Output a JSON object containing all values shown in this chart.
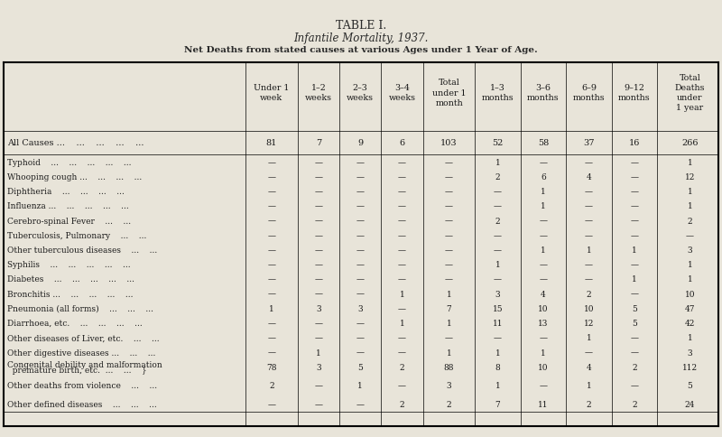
{
  "title1": "TABLE I.",
  "title2": "Infantile Mortality, 1937.",
  "title3": "Net Deaths from stated causes at various Ages under 1 Year of Age.",
  "bg_color": "#e8e4d9",
  "col_headers": [
    "Under 1\nweek",
    "1–2\nweeks",
    "2–3\nweeks",
    "3–4\nweeks",
    "Total\nunder 1\nmonth",
    "1–3\nmonths",
    "3–6\nmonths",
    "6–9\nmonths",
    "9–12\nmonths",
    "Total\nDeaths\nunder\n1 year"
  ],
  "rows": [
    {
      "label": "All Causes ...    ...    ...    ...    ...",
      "values": [
        "81",
        "7",
        "9",
        "6",
        "103",
        "52",
        "58",
        "37",
        "16",
        "266"
      ],
      "bold": true,
      "separator_before": true,
      "separator_after": true
    },
    {
      "label": "Typhoid    ...    ...    ...    ...    ...",
      "values": [
        "—",
        "—",
        "—",
        "—",
        "—",
        "1",
        "—",
        "—",
        "—",
        "1"
      ],
      "bold": false,
      "separator_before": false,
      "separator_after": false
    },
    {
      "label": "Whooping cough ...    ...    ...    ...",
      "values": [
        "—",
        "—",
        "—",
        "—",
        "—",
        "2",
        "6",
        "4",
        "—",
        "12"
      ],
      "bold": false,
      "separator_before": false,
      "separator_after": false
    },
    {
      "label": "Diphtheria    ...    ...    ...    ...",
      "values": [
        "—",
        "—",
        "—",
        "—",
        "—",
        "—",
        "1",
        "—",
        "—",
        "1"
      ],
      "bold": false,
      "separator_before": false,
      "separator_after": false
    },
    {
      "label": "Influenza ...    ...    ...    ...    ...",
      "values": [
        "—",
        "—",
        "—",
        "—",
        "—",
        "—",
        "1",
        "—",
        "—",
        "1"
      ],
      "bold": false,
      "separator_before": false,
      "separator_after": false
    },
    {
      "label": "Cerebro-spinal Fever    ...    ...",
      "values": [
        "—",
        "—",
        "—",
        "—",
        "—",
        "2",
        "—",
        "—",
        "—",
        "2"
      ],
      "bold": false,
      "separator_before": false,
      "separator_after": false
    },
    {
      "label": "Tuberculosis, Pulmonary    ...    ...",
      "values": [
        "—",
        "—",
        "—",
        "—",
        "—",
        "—",
        "—",
        "—",
        "—",
        "—"
      ],
      "bold": false,
      "separator_before": false,
      "separator_after": false
    },
    {
      "label": "Other tuberculous diseases    ...    ...",
      "values": [
        "—",
        "—",
        "—",
        "—",
        "—",
        "—",
        "1",
        "1",
        "1",
        "3"
      ],
      "bold": false,
      "separator_before": false,
      "separator_after": false
    },
    {
      "label": "Syphilis    ...    ...    ...    ...    ...",
      "values": [
        "—",
        "—",
        "—",
        "—",
        "—",
        "1",
        "—",
        "—",
        "—",
        "1"
      ],
      "bold": false,
      "separator_before": false,
      "separator_after": false
    },
    {
      "label": "Diabetes    ...    ...    ...    ...    ...",
      "values": [
        "—",
        "—",
        "—",
        "—",
        "—",
        "—",
        "—",
        "—",
        "1",
        "1"
      ],
      "bold": false,
      "separator_before": false,
      "separator_after": false
    },
    {
      "label": "Bronchitis ...    ...    ...    ...    ...",
      "values": [
        "—",
        "—",
        "—",
        "1",
        "1",
        "3",
        "4",
        "2",
        "—",
        "10"
      ],
      "bold": false,
      "separator_before": false,
      "separator_after": false
    },
    {
      "label": "Pneumonia (all forms)    ...    ...    ...",
      "values": [
        "1",
        "3",
        "3",
        "—",
        "7",
        "15",
        "10",
        "10",
        "5",
        "47"
      ],
      "bold": false,
      "separator_before": false,
      "separator_after": false
    },
    {
      "label": "Diarrhoea, etc.    ...    ...    ...    ...",
      "values": [
        "—",
        "—",
        "—",
        "1",
        "1",
        "11",
        "13",
        "12",
        "5",
        "42"
      ],
      "bold": false,
      "separator_before": false,
      "separator_after": false
    },
    {
      "label": "Other diseases of Liver, etc.    ...    ...",
      "values": [
        "—",
        "—",
        "—",
        "—",
        "—",
        "—",
        "—",
        "1",
        "—",
        "1"
      ],
      "bold": false,
      "separator_before": false,
      "separator_after": false
    },
    {
      "label": "Other digestive diseases ...    ...    ...",
      "values": [
        "—",
        "1",
        "—",
        "—",
        "1",
        "1",
        "1",
        "—",
        "—",
        "3"
      ],
      "bold": false,
      "separator_before": false,
      "separator_after": false
    },
    {
      "label": "Congenital debility and malformation\n  premature birth, etc.  ...    ...    }",
      "values": [
        "78",
        "3",
        "5",
        "2",
        "88",
        "8",
        "10",
        "4",
        "2",
        "112"
      ],
      "bold": false,
      "separator_before": false,
      "separator_after": false,
      "multiline": true
    },
    {
      "label": "Other deaths from violence    ...    ...",
      "values": [
        "2",
        "—",
        "1",
        "—",
        "3",
        "1",
        "—",
        "1",
        "—",
        "5"
      ],
      "bold": false,
      "separator_before": false,
      "separator_after": false
    },
    {
      "label": "Other defined diseases    ...    ...    ...",
      "values": [
        "—",
        "—",
        "—",
        "2",
        "2",
        "7",
        "11",
        "2",
        "2",
        "24"
      ],
      "bold": false,
      "separator_before": false,
      "separator_after": false
    }
  ]
}
